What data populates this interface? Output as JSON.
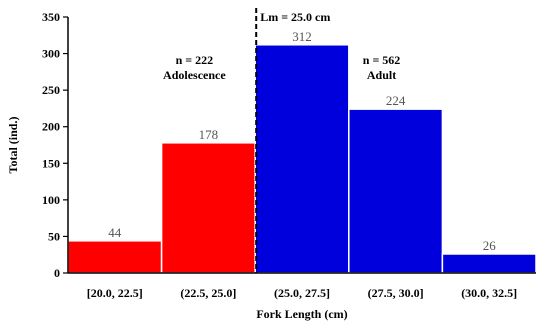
{
  "chart_data": {
    "type": "bar",
    "categories": [
      "[20.0, 22.5]",
      "(22.5, 25.0]",
      "(25.0, 27.5]",
      "(27.5, 30.0]",
      "(30.0, 32.5]"
    ],
    "values": [
      44,
      178,
      312,
      224,
      26
    ],
    "colors": [
      "#ff0000",
      "#ff0000",
      "#0000dd",
      "#0000dd",
      "#0000dd"
    ],
    "xlabel": "Fork Length (cm)",
    "ylabel": "Total (ind.)",
    "ylim": [
      0,
      350
    ],
    "yticks": [
      0,
      50,
      100,
      150,
      200,
      250,
      300,
      350
    ],
    "reference_line": {
      "label": "Lm = 25.0 cm",
      "x": 25.0,
      "style": "dashed"
    },
    "annotations": [
      {
        "line1": "n = 222",
        "line2": "Adolescence"
      },
      {
        "line1": "n = 562",
        "line2": "Adult"
      }
    ],
    "grid": false
  }
}
